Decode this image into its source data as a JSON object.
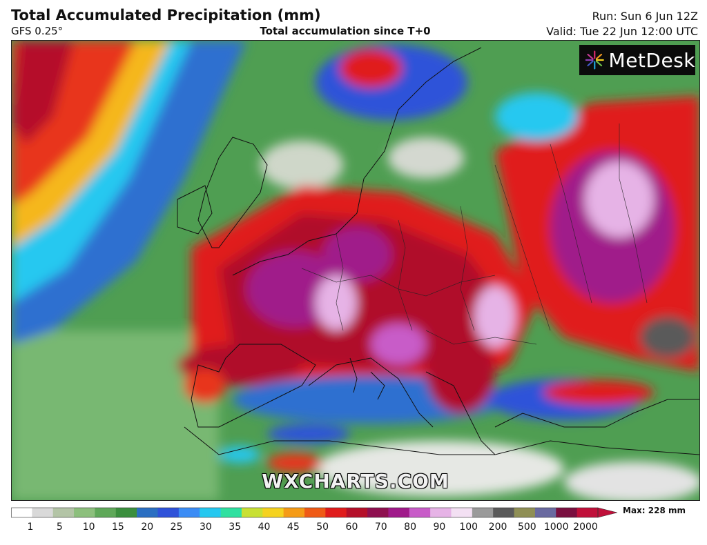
{
  "header": {
    "title": "Total Accumulated Precipitation (mm)",
    "model": "GFS 0.25°",
    "subtitle": "Total accumulation since T+0",
    "run": "Run: Sun 6 Jun 12Z",
    "valid": "Valid: Tue 22 Jun 12:00 UTC"
  },
  "logo": {
    "text": "MetDesk",
    "icon": "sunburst-icon"
  },
  "watermark": "WXCHARTS.COM",
  "legend": {
    "max_label": "Max: 228 mm",
    "ticks": [
      "1",
      "5",
      "10",
      "15",
      "20",
      "25",
      "30",
      "35",
      "40",
      "45",
      "50",
      "60",
      "70",
      "80",
      "90",
      "100",
      "200",
      "500",
      "1000",
      "2000"
    ],
    "colors": [
      "#ffffff",
      "#d9d9d9",
      "#b3c4a6",
      "#8cbf7c",
      "#5fa859",
      "#3b8f3e",
      "#2b6fc2",
      "#2f52d9",
      "#3b8cf5",
      "#25c8f0",
      "#2fe0a0",
      "#c8e033",
      "#f5d21f",
      "#f59b16",
      "#ef5a16",
      "#e01c1c",
      "#b5102a",
      "#8f1050",
      "#a01a8a",
      "#c85cc8",
      "#e6b3e6",
      "#f3e0f3",
      "#9a9a9a",
      "#5a5a5a",
      "#8f8f55",
      "#6a6aa0",
      "#7a1040",
      "#c0103a"
    ]
  },
  "map": {
    "colors": {
      "ocean_dry": "#6db86b",
      "atlantic_low": "#2f6fd0",
      "atlantic_core": "#e8351a",
      "heavy": "#b0102a",
      "extreme": "#a01a8a",
      "dry_land": "#cfd7c9"
    }
  }
}
